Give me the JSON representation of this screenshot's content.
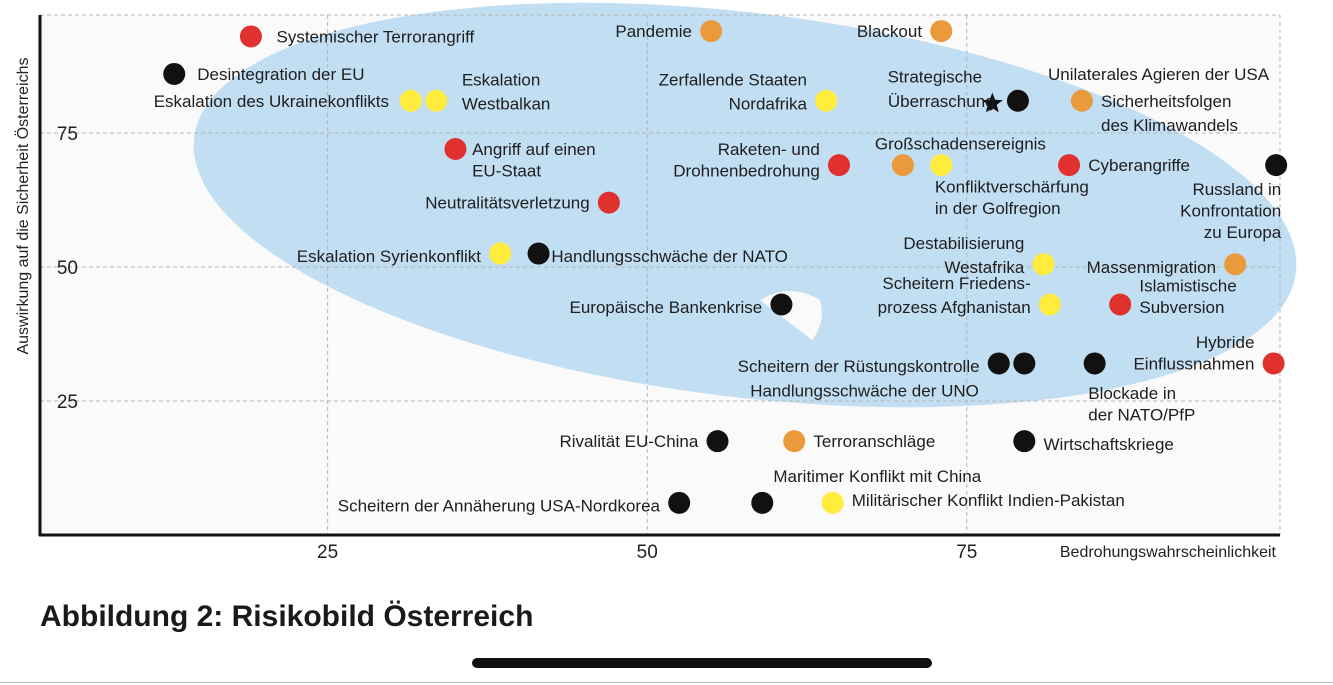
{
  "caption": "Abbildung 2: Risikobild Österreich",
  "colors": {
    "red": "#e0312e",
    "black": "#111111",
    "orange": "#ea9a3a",
    "yellow": "#ffec3d",
    "ellipse": "#c2def3",
    "grid": "#b5b5b5",
    "axis": "#111111"
  },
  "chart_data": {
    "type": "scatter",
    "title": "",
    "xlabel": "Bedrohungswahrscheinlichkeit",
    "ylabel": "Auswirkung auf die Sicherheit Österreichs",
    "xlim": [
      2.5,
      99.5
    ],
    "ylim": [
      0,
      97
    ],
    "xticks": [
      25,
      50,
      75
    ],
    "yticks": [
      25,
      50,
      75
    ],
    "grid": true,
    "highlight_region": "light-blue ellipse covering the upper right",
    "points": [
      {
        "label": "Systemischer Terrorangriff",
        "x": 19,
        "y": 93,
        "color": "red"
      },
      {
        "label": "Pandemie",
        "x": 55,
        "y": 94,
        "color": "orange"
      },
      {
        "label": "Blackout",
        "x": 73,
        "y": 94,
        "color": "orange"
      },
      {
        "label": "Desintegration der EU",
        "x": 13,
        "y": 86,
        "color": "black"
      },
      {
        "label": "Eskalation des Ukrainekonflikts",
        "x": 31.5,
        "y": 81,
        "color": "yellow"
      },
      {
        "label": "Eskalation Westbalkan",
        "x": 33.5,
        "y": 81,
        "color": "yellow"
      },
      {
        "label": "Zerfallende Staaten Nordafrika",
        "x": 64,
        "y": 81,
        "color": "yellow"
      },
      {
        "label": "Strategische Überraschung",
        "x": 77,
        "y": 80.5,
        "color": "black",
        "marker": "star"
      },
      {
        "label": "",
        "x": 79,
        "y": 81,
        "color": "black"
      },
      {
        "label": "Unilaterales Agieren der USA / Sicherheitsfolgen des Klimawandels",
        "x": 84,
        "y": 81,
        "color": "orange"
      },
      {
        "label": "Angriff auf einen EU-Staat",
        "x": 35,
        "y": 72,
        "color": "red"
      },
      {
        "label": "Raketen- und Drohnenbedrohung",
        "x": 65,
        "y": 69,
        "color": "red"
      },
      {
        "label": "Großschadensereignis",
        "x": 70,
        "y": 69,
        "color": "orange"
      },
      {
        "label": "Konfliktverschärfung in der Golfregion",
        "x": 73,
        "y": 69,
        "color": "yellow"
      },
      {
        "label": "Cyberangriffe",
        "x": 83,
        "y": 69,
        "color": "red"
      },
      {
        "label": "Russland in Konfrontation zu Europa",
        "x": 99.2,
        "y": 69,
        "color": "black"
      },
      {
        "label": "Neutralitätsverletzung",
        "x": 47,
        "y": 62,
        "color": "red"
      },
      {
        "label": "Eskalation Syrienkonflikt",
        "x": 38.5,
        "y": 52.5,
        "color": "yellow"
      },
      {
        "label": "Handlungsschwäche der NATO",
        "x": 41.5,
        "y": 52.5,
        "color": "black"
      },
      {
        "label": "Destabilisierung Westafrika",
        "x": 81,
        "y": 50.5,
        "color": "yellow"
      },
      {
        "label": "Massenmigration",
        "x": 96,
        "y": 50.5,
        "color": "orange"
      },
      {
        "label": "Europäische Bankenkrise",
        "x": 60.5,
        "y": 43,
        "color": "black"
      },
      {
        "label": "Scheitern Friedensprozess Afghanistan",
        "x": 81.5,
        "y": 43,
        "color": "yellow"
      },
      {
        "label": "Islamistische Subversion",
        "x": 87,
        "y": 43,
        "color": "red"
      },
      {
        "label": "Scheitern der Rüstungskontrolle",
        "x": 77.5,
        "y": 32,
        "color": "black"
      },
      {
        "label": "Handlungsschwäche der UNO",
        "x": 79.5,
        "y": 32,
        "color": "black"
      },
      {
        "label": "Blockade in der NATO/PfP",
        "x": 85,
        "y": 32,
        "color": "black"
      },
      {
        "label": "Hybride Einflussnahmen",
        "x": 99,
        "y": 32,
        "color": "red"
      },
      {
        "label": "Rivalität EU-China",
        "x": 55.5,
        "y": 17.5,
        "color": "black"
      },
      {
        "label": "Terroranschläge",
        "x": 61.5,
        "y": 17.5,
        "color": "orange"
      },
      {
        "label": "Wirtschaftskriege",
        "x": 79.5,
        "y": 17.5,
        "color": "black"
      },
      {
        "label": "Scheitern der Annäherung USA-Nordkorea",
        "x": 52.5,
        "y": 6,
        "color": "black"
      },
      {
        "label": "Maritimer Konflikt mit China",
        "x": 59,
        "y": 6,
        "color": "black"
      },
      {
        "label": "Militärischer Konflikt Indien-Pakistan",
        "x": 64.5,
        "y": 6,
        "color": "yellow"
      }
    ],
    "labels": [
      {
        "text": "Systemischer Terrorangriff",
        "ax": 21,
        "ay": 93,
        "anchor": "start"
      },
      {
        "text": "Pandemie",
        "ax": 53.5,
        "ay": 94,
        "anchor": "end"
      },
      {
        "text": "Blackout",
        "ax": 71.5,
        "ay": 94,
        "anchor": "end"
      },
      {
        "text": "Desintegration der EU",
        "ax": 14.8,
        "ay": 86,
        "anchor": "start"
      },
      {
        "text": "Eskalation des Ukrainekonflikts",
        "ax": 29.8,
        "ay": 81,
        "anchor": "end"
      },
      {
        "text": "Eskalation",
        "ax": 35.5,
        "ay": 85,
        "anchor": "start"
      },
      {
        "text": "Westbalkan",
        "ax": 35.5,
        "ay": 80.5,
        "anchor": "start"
      },
      {
        "text": "Zerfallende Staaten",
        "ax": 62.5,
        "ay": 85,
        "anchor": "end"
      },
      {
        "text": "Nordafrika",
        "ax": 62.5,
        "ay": 80.5,
        "anchor": "end"
      },
      {
        "text": "Strategische",
        "ax": 72.5,
        "ay": 85.5,
        "anchor": "middle"
      },
      {
        "text": "Überraschung",
        "ax": 73,
        "ay": 81,
        "anchor": "middle"
      },
      {
        "text": "Unilaterales Agieren der USA",
        "ax": 90,
        "ay": 86,
        "anchor": "middle"
      },
      {
        "text": "Sicherheitsfolgen",
        "ax": 85.5,
        "ay": 81,
        "anchor": "start"
      },
      {
        "text": "des Klimawandels",
        "ax": 85.5,
        "ay": 76.5,
        "anchor": "start"
      },
      {
        "text": "Angriff auf einen",
        "ax": 36.3,
        "ay": 72,
        "anchor": "start"
      },
      {
        "text": "EU-Staat",
        "ax": 36.3,
        "ay": 68,
        "anchor": "start"
      },
      {
        "text": "Raketen- und",
        "ax": 63.5,
        "ay": 72,
        "anchor": "end"
      },
      {
        "text": "Drohnenbedrohung",
        "ax": 63.5,
        "ay": 68,
        "anchor": "end"
      },
      {
        "text": "Großschadensereignis",
        "ax": 74.5,
        "ay": 73,
        "anchor": "middle"
      },
      {
        "text": "Konfliktverschärfung",
        "ax": 72.5,
        "ay": 65,
        "anchor": "start"
      },
      {
        "text": "in der Golfregion",
        "ax": 72.5,
        "ay": 61,
        "anchor": "start"
      },
      {
        "text": "Cyberangriffe",
        "ax": 84.5,
        "ay": 69,
        "anchor": "start"
      },
      {
        "text": "Russland in",
        "ax": 99.6,
        "ay": 64.5,
        "anchor": "end"
      },
      {
        "text": "Konfrontation",
        "ax": 99.6,
        "ay": 60.5,
        "anchor": "end"
      },
      {
        "text": "zu Europa",
        "ax": 99.6,
        "ay": 56.5,
        "anchor": "end"
      },
      {
        "text": "Neutralitätsverletzung",
        "ax": 45.5,
        "ay": 62,
        "anchor": "end"
      },
      {
        "text": "Eskalation Syrienkonflikt",
        "ax": 37,
        "ay": 52,
        "anchor": "end"
      },
      {
        "text": "Handlungsschwäche der NATO",
        "ax": 42.5,
        "ay": 52,
        "anchor": "start"
      },
      {
        "text": "Destabilisierung",
        "ax": 79.5,
        "ay": 54.5,
        "anchor": "end"
      },
      {
        "text": "Westafrika",
        "ax": 79.5,
        "ay": 50,
        "anchor": "end"
      },
      {
        "text": "Massenmigration",
        "ax": 94.5,
        "ay": 50,
        "anchor": "end"
      },
      {
        "text": "Europäische Bankenkrise",
        "ax": 59,
        "ay": 42.5,
        "anchor": "end"
      },
      {
        "text": "Scheitern Friedens-",
        "ax": 80,
        "ay": 47,
        "anchor": "end"
      },
      {
        "text": "prozess Afghanistan",
        "ax": 80,
        "ay": 42.5,
        "anchor": "end"
      },
      {
        "text": "Islamistische",
        "ax": 88.5,
        "ay": 46.5,
        "anchor": "start"
      },
      {
        "text": "Subversion",
        "ax": 88.5,
        "ay": 42.5,
        "anchor": "start"
      },
      {
        "text": "Scheitern der Rüstungskontrolle",
        "ax": 76,
        "ay": 31.5,
        "anchor": "end"
      },
      {
        "text": "Handlungsschwäche der UNO",
        "ax": 67,
        "ay": 27,
        "anchor": "middle"
      },
      {
        "text": "Blockade in",
        "ax": 84.5,
        "ay": 26.5,
        "anchor": "start"
      },
      {
        "text": "der NATO/PfP",
        "ax": 84.5,
        "ay": 22.5,
        "anchor": "start"
      },
      {
        "text": "Hybride",
        "ax": 97.5,
        "ay": 36,
        "anchor": "end"
      },
      {
        "text": "Einflussnahmen",
        "ax": 97.5,
        "ay": 32,
        "anchor": "end"
      },
      {
        "text": "Rivalität EU-China",
        "ax": 54,
        "ay": 17.5,
        "anchor": "end"
      },
      {
        "text": "Terroranschläge",
        "ax": 63,
        "ay": 17.5,
        "anchor": "start"
      },
      {
        "text": "Wirtschaftskriege",
        "ax": 81,
        "ay": 17,
        "anchor": "start"
      },
      {
        "text": "Maritimer Konflikt mit China",
        "ax": 68,
        "ay": 11,
        "anchor": "middle"
      },
      {
        "text": "Scheitern der Annäherung USA-Nordkorea",
        "ax": 51,
        "ay": 5.5,
        "anchor": "end"
      },
      {
        "text": "Militärischer Konflikt Indien-Pakistan",
        "ax": 66,
        "ay": 6.5,
        "anchor": "start"
      }
    ]
  }
}
